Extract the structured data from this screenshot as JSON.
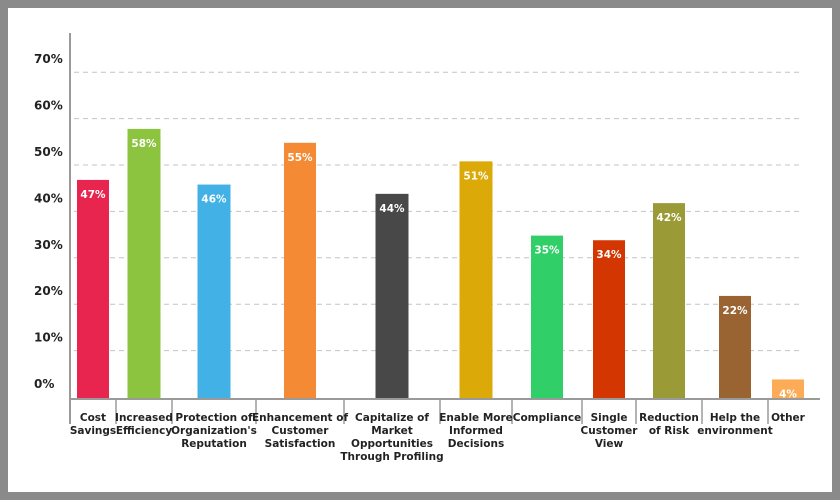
{
  "chart_data": {
    "type": "bar",
    "categories": [
      [
        "Cost",
        "Savings"
      ],
      [
        "Increased",
        "Efficiency"
      ],
      [
        "Protection of",
        "Organization's",
        "Reputation"
      ],
      [
        "Enhancement of",
        "Customer",
        "Satisfaction"
      ],
      [
        "Capitalize of",
        "Market",
        "Opportunities",
        "Through Profiling"
      ],
      [
        "Enable More",
        "Informed",
        "Decisions"
      ],
      [
        "Compliance"
      ],
      [
        "Single",
        "Customer",
        "View"
      ],
      [
        "Reduction",
        "of Risk"
      ],
      [
        "Help the",
        "environment"
      ],
      [
        "Other"
      ]
    ],
    "values": [
      47,
      58,
      46,
      55,
      44,
      51,
      35,
      34,
      42,
      22,
      4
    ],
    "value_labels": [
      "47%",
      "58%",
      "46%",
      "55%",
      "44%",
      "51%",
      "35%",
      "34%",
      "42%",
      "22%",
      "4%"
    ],
    "colors": [
      "#e8254f",
      "#8cc43f",
      "#41b1e6",
      "#f58a35",
      "#484848",
      "#dcaa08",
      "#30cf68",
      "#d33600",
      "#9a9a36",
      "#9a6332",
      "#fcab56"
    ],
    "yticks": [
      "0%",
      "10%",
      "20%",
      "30%",
      "40%",
      "50%",
      "60%",
      "70%"
    ],
    "ylim": [
      0,
      70
    ],
    "grid": true,
    "title": "",
    "xlabel": "",
    "ylabel": ""
  }
}
